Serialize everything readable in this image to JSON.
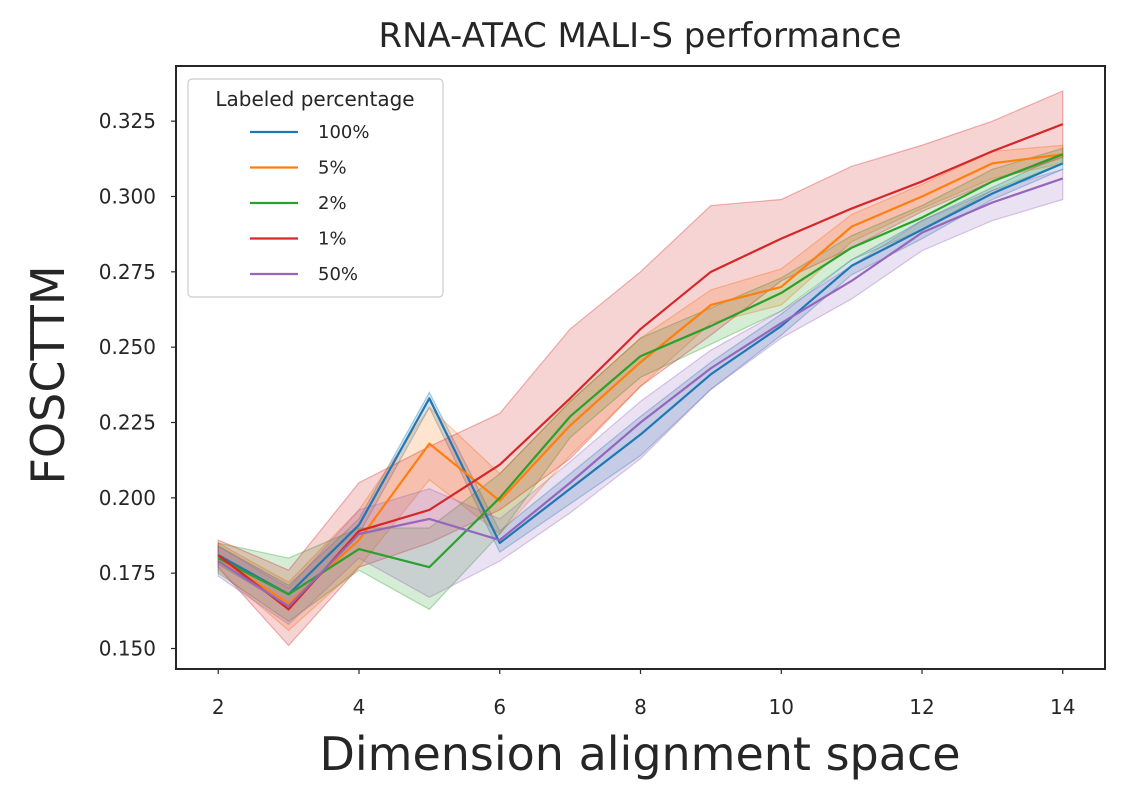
{
  "chart_data": {
    "type": "line",
    "title": "RNA-ATAC MALI-S performance",
    "xlabel": "Dimension alignment space",
    "ylabel": "FOSCTTM",
    "xlim": [
      1.4,
      14.6
    ],
    "ylim": [
      0.1432,
      0.3433
    ],
    "xticks": [
      2,
      4,
      6,
      8,
      10,
      12,
      14
    ],
    "xtick_labels": [
      "2",
      "4",
      "6",
      "8",
      "10",
      "12",
      "14"
    ],
    "yticks": [
      0.15,
      0.175,
      0.2,
      0.225,
      0.25,
      0.275,
      0.3,
      0.325
    ],
    "ytick_labels": [
      "0.150",
      "0.175",
      "0.200",
      "0.225",
      "0.250",
      "0.275",
      "0.300",
      "0.325"
    ],
    "grid": false,
    "legend": {
      "title": "Labeled percentage",
      "position": "top-left"
    },
    "x": [
      2,
      3,
      4,
      5,
      6,
      7,
      8,
      9,
      10,
      11,
      12,
      13,
      14
    ],
    "series": [
      {
        "name": "100%",
        "color": "#1f77b4",
        "values": [
          0.181,
          0.168,
          0.191,
          0.233,
          0.185,
          0.203,
          0.221,
          0.241,
          0.257,
          0.277,
          0.289,
          0.301,
          0.311
        ],
        "lower": [
          0.178,
          0.164,
          0.188,
          0.23,
          0.182,
          0.198,
          0.214,
          0.236,
          0.254,
          0.274,
          0.286,
          0.299,
          0.309
        ],
        "upper": [
          0.184,
          0.171,
          0.193,
          0.235,
          0.189,
          0.208,
          0.227,
          0.245,
          0.261,
          0.279,
          0.292,
          0.303,
          0.314
        ]
      },
      {
        "name": "5%",
        "color": "#ff7f0e",
        "values": [
          0.18,
          0.165,
          0.186,
          0.218,
          0.199,
          0.224,
          0.245,
          0.264,
          0.27,
          0.29,
          0.3,
          0.311,
          0.314
        ],
        "lower": [
          0.176,
          0.156,
          0.177,
          0.206,
          0.188,
          0.214,
          0.237,
          0.258,
          0.264,
          0.285,
          0.296,
          0.306,
          0.311
        ],
        "upper": [
          0.185,
          0.172,
          0.196,
          0.23,
          0.208,
          0.232,
          0.253,
          0.269,
          0.276,
          0.294,
          0.304,
          0.315,
          0.317
        ]
      },
      {
        "name": "2%",
        "color": "#2ca02c",
        "values": [
          0.18,
          0.168,
          0.183,
          0.177,
          0.2,
          0.227,
          0.247,
          0.257,
          0.268,
          0.283,
          0.293,
          0.305,
          0.314
        ],
        "lower": [
          0.175,
          0.159,
          0.176,
          0.163,
          0.188,
          0.22,
          0.24,
          0.251,
          0.262,
          0.279,
          0.289,
          0.302,
          0.311
        ],
        "upper": [
          0.185,
          0.18,
          0.19,
          0.19,
          0.208,
          0.232,
          0.253,
          0.263,
          0.273,
          0.287,
          0.297,
          0.309,
          0.316
        ]
      },
      {
        "name": "1%",
        "color": "#d62728",
        "values": [
          0.181,
          0.163,
          0.189,
          0.196,
          0.211,
          0.233,
          0.256,
          0.275,
          0.286,
          0.296,
          0.305,
          0.315,
          0.324
        ],
        "lower": [
          0.177,
          0.151,
          0.177,
          0.185,
          0.196,
          0.213,
          0.237,
          0.254,
          0.272,
          0.283,
          0.295,
          0.305,
          0.313
        ],
        "upper": [
          0.186,
          0.176,
          0.205,
          0.217,
          0.228,
          0.256,
          0.275,
          0.297,
          0.299,
          0.31,
          0.317,
          0.325,
          0.335
        ]
      },
      {
        "name": "50%",
        "color": "#9467bd",
        "values": [
          0.179,
          0.164,
          0.188,
          0.193,
          0.186,
          0.205,
          0.225,
          0.243,
          0.258,
          0.272,
          0.288,
          0.298,
          0.306
        ],
        "lower": [
          0.174,
          0.158,
          0.18,
          0.167,
          0.179,
          0.195,
          0.213,
          0.236,
          0.253,
          0.266,
          0.282,
          0.292,
          0.299
        ],
        "upper": [
          0.184,
          0.17,
          0.196,
          0.203,
          0.193,
          0.212,
          0.232,
          0.249,
          0.262,
          0.277,
          0.292,
          0.302,
          0.309
        ]
      }
    ]
  }
}
